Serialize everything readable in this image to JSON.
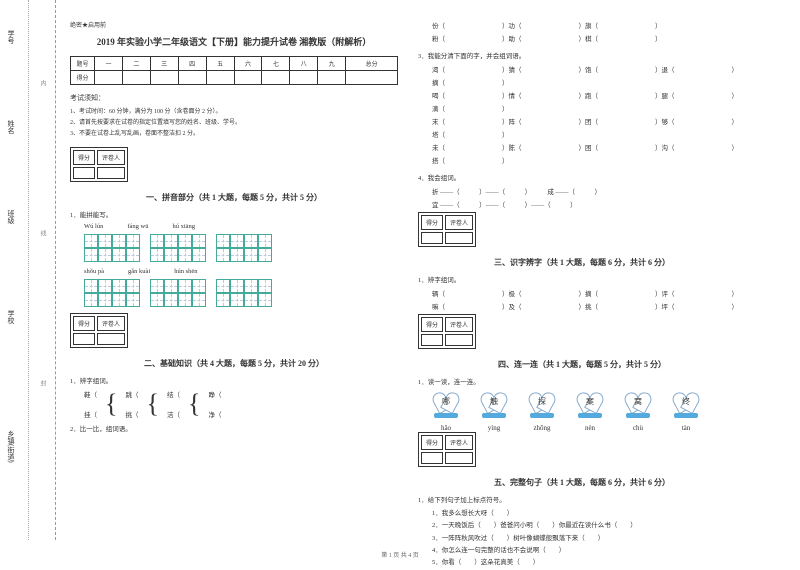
{
  "binding": {
    "labels": [
      "学号",
      "姓名",
      "班级",
      "学校",
      "乡镇(街道)"
    ],
    "cuts": [
      "内",
      "线",
      "封"
    ],
    "side": "题"
  },
  "header": {
    "secret": "绝密★启用前",
    "title": "2019 年实验小学二年级语文【下册】能力提升试卷 湘教版（附解析）"
  },
  "scoreTable": {
    "headers": [
      "题号",
      "一",
      "二",
      "三",
      "四",
      "五",
      "六",
      "七",
      "八",
      "九",
      "总分"
    ],
    "row2": "得分"
  },
  "notes": {
    "heading": "考试须知：",
    "items": [
      "1、考试时间：60 分钟，满分为 100 分（含卷面分 2 分）。",
      "2、请首先按要求在试卷的指定位置填写您的姓名、班级、学号。",
      "3、不要在试卷上乱写乱画，卷面不整洁扣 2 分。"
    ]
  },
  "grader": {
    "c1": "得分",
    "c2": "评卷人"
  },
  "sec1": {
    "title": "一、拼音部分（共 1 大题，每题 5 分，共计 5 分）",
    "q": "1．能拼能写。",
    "p1": [
      "Wú lún",
      "fáng wū",
      "hú xiāng"
    ],
    "p2": [
      "shǒu pà",
      "gǎn kuài",
      "hún shēn"
    ]
  },
  "sec2": {
    "title": "二、基础知识（共 4 大题，每题 5 分，共计 20 分）",
    "q1": "1．辨字组词。",
    "pairs": [
      [
        "鞋（",
        "挂（"
      ],
      [
        "跳（",
        "挑（"
      ],
      [
        "结（",
        "洁（"
      ],
      [
        "睁（",
        "净（"
      ]
    ],
    "q2": "2．比一比，组词语。",
    "lines2": [
      [
        "份（",
        "功（",
        "旗（"
      ],
      [
        "粉（",
        "助（",
        "棋（"
      ]
    ],
    "q3": "3．我能分清下面的字，并会组词语。",
    "lines3": [
      [
        "渴（",
        "猜（",
        "饱（",
        "退（",
        "摘（"
      ],
      [
        "喝（",
        "情（",
        "跑（",
        "腿（",
        "滴（"
      ],
      [
        "末（",
        "阵（",
        "团（",
        "够（",
        "塔（"
      ],
      [
        "未（",
        "陈（",
        "困（",
        "沟（",
        "搭（"
      ]
    ],
    "q4": "4．我会组词。",
    "lines4": [
      "折 ——（　　　）——（　　　）　　　成 ——（　　　）",
      "宜 ——（　　　）——（　　　）——（　　　）"
    ]
  },
  "sec3": {
    "title": "三、识字辨字（共 1 大题，每题 6 分，共计 6 分）",
    "q": "1．辨字组词。",
    "lines": [
      [
        "辆（",
        "极（",
        "摘（",
        "评（"
      ],
      [
        "嘛（",
        "及（",
        "挑（",
        "坪（"
      ]
    ]
  },
  "sec4": {
    "title": "四、连一连（共 1 大题，每题 5 分，共计 5 分）",
    "q": "1．读一读，连一连。",
    "chars": [
      "哪",
      "触",
      "探",
      "案",
      "窝",
      "终"
    ],
    "labels": [
      "hǎo",
      "yíng",
      "zhōng",
      "nèn",
      "chù",
      "tàn"
    ]
  },
  "sec5": {
    "title": "五、完整句子（共 1 大题，每题 6 分，共计 6 分）",
    "q": "1．给下列句子加上标点符号。",
    "items": [
      "1．我多么想长大呀（　　）",
      "2．一天晚饭后（　　）爸爸问小明（　　）你最近在读什么书（　　）",
      "3．一阵阵秋风吹过（　　）树叶像蝴蝶般飘落下来（　　）",
      "4．你怎么连一句完整的话也不会说啊（　　）",
      "5．你看（　　）这朵花真美（　　）"
    ]
  },
  "footer": "第 1 页 共 4 页"
}
